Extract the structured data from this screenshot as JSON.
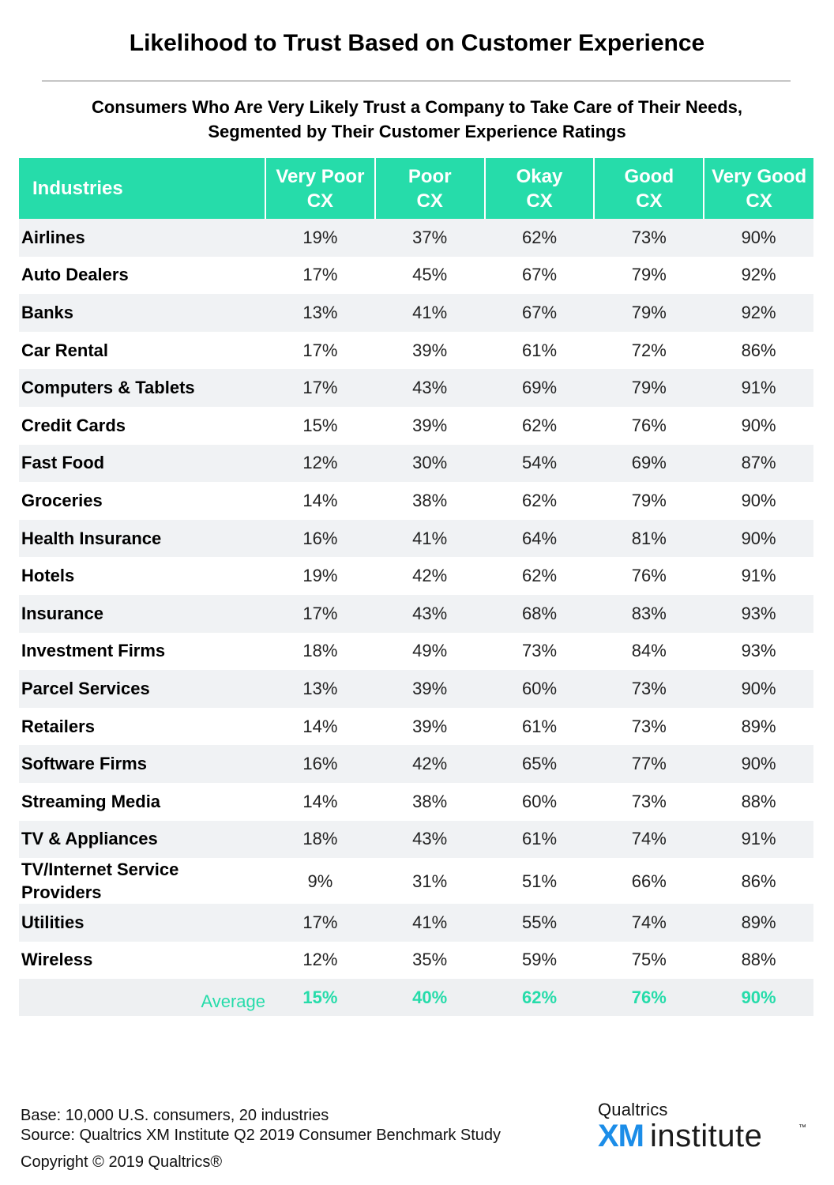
{
  "title": "Likelihood to Trust Based on Customer Experience",
  "subtitle_line1": "Consumers Who Are Very Likely Trust a Company to Take Care of Their Needs,",
  "subtitle_line2": "Segmented by Their Customer Experience Ratings",
  "table": {
    "header": {
      "industries": "Industries",
      "columns": [
        {
          "line1": "Very Poor",
          "line2": "CX"
        },
        {
          "line1": "Poor",
          "line2": "CX"
        },
        {
          "line1": "Okay",
          "line2": "CX"
        },
        {
          "line1": "Good",
          "line2": "CX"
        },
        {
          "line1": "Very Good",
          "line2": "CX"
        }
      ]
    },
    "rows": [
      {
        "name": "Airlines",
        "values": [
          "19%",
          "37%",
          "62%",
          "73%",
          "90%"
        ]
      },
      {
        "name": "Auto Dealers",
        "values": [
          "17%",
          "45%",
          "67%",
          "79%",
          "92%"
        ]
      },
      {
        "name": "Banks",
        "values": [
          "13%",
          "41%",
          "67%",
          "79%",
          "92%"
        ]
      },
      {
        "name": "Car Rental",
        "values": [
          "17%",
          "39%",
          "61%",
          "72%",
          "86%"
        ]
      },
      {
        "name": "Computers & Tablets",
        "values": [
          "17%",
          "43%",
          "69%",
          "79%",
          "91%"
        ]
      },
      {
        "name": "Credit Cards",
        "values": [
          "15%",
          "39%",
          "62%",
          "76%",
          "90%"
        ]
      },
      {
        "name": "Fast Food",
        "values": [
          "12%",
          "30%",
          "54%",
          "69%",
          "87%"
        ]
      },
      {
        "name": "Groceries",
        "values": [
          "14%",
          "38%",
          "62%",
          "79%",
          "90%"
        ]
      },
      {
        "name": "Health Insurance",
        "values": [
          "16%",
          "41%",
          "64%",
          "81%",
          "90%"
        ]
      },
      {
        "name": "Hotels",
        "values": [
          "19%",
          "42%",
          "62%",
          "76%",
          "91%"
        ]
      },
      {
        "name": "Insurance",
        "values": [
          "17%",
          "43%",
          "68%",
          "83%",
          "93%"
        ]
      },
      {
        "name": "Investment Firms",
        "values": [
          "18%",
          "49%",
          "73%",
          "84%",
          "93%"
        ]
      },
      {
        "name": "Parcel Services",
        "values": [
          "13%",
          "39%",
          "60%",
          "73%",
          "90%"
        ]
      },
      {
        "name": "Retailers",
        "values": [
          "14%",
          "39%",
          "61%",
          "73%",
          "89%"
        ]
      },
      {
        "name": "Software Firms",
        "values": [
          "16%",
          "42%",
          "65%",
          "77%",
          "90%"
        ]
      },
      {
        "name": "Streaming Media",
        "values": [
          "14%",
          "38%",
          "60%",
          "73%",
          "88%"
        ]
      },
      {
        "name": "TV & Appliances",
        "values": [
          "18%",
          "43%",
          "61%",
          "74%",
          "91%"
        ]
      },
      {
        "name": "TV/Internet Service Providers",
        "name_line1": "TV/Internet Service",
        "name_line2": "Providers",
        "values": [
          "9%",
          "31%",
          "51%",
          "66%",
          "86%"
        ]
      },
      {
        "name": "Utilities",
        "values": [
          "17%",
          "41%",
          "55%",
          "74%",
          "89%"
        ]
      },
      {
        "name": "Wireless",
        "values": [
          "12%",
          "35%",
          "59%",
          "75%",
          "88%"
        ]
      }
    ],
    "average": {
      "label": "Average",
      "values": [
        "15%",
        "40%",
        "62%",
        "76%",
        "90%"
      ]
    }
  },
  "footer": {
    "base": "Base: 10,000 U.S. consumers, 20 industries",
    "source": "Source: Qualtrics XM Institute Q2 2019 Consumer Benchmark Study",
    "copyright": "Copyright © 2019 Qualtrics®"
  },
  "logo": {
    "brand": "Qualtrics",
    "xm": "XM",
    "institute": "institute",
    "trademark": "™"
  },
  "colors": {
    "accent": "#26dcaa",
    "row_alt": "#f0f2f4",
    "logo_blue": "#1c8de8"
  }
}
